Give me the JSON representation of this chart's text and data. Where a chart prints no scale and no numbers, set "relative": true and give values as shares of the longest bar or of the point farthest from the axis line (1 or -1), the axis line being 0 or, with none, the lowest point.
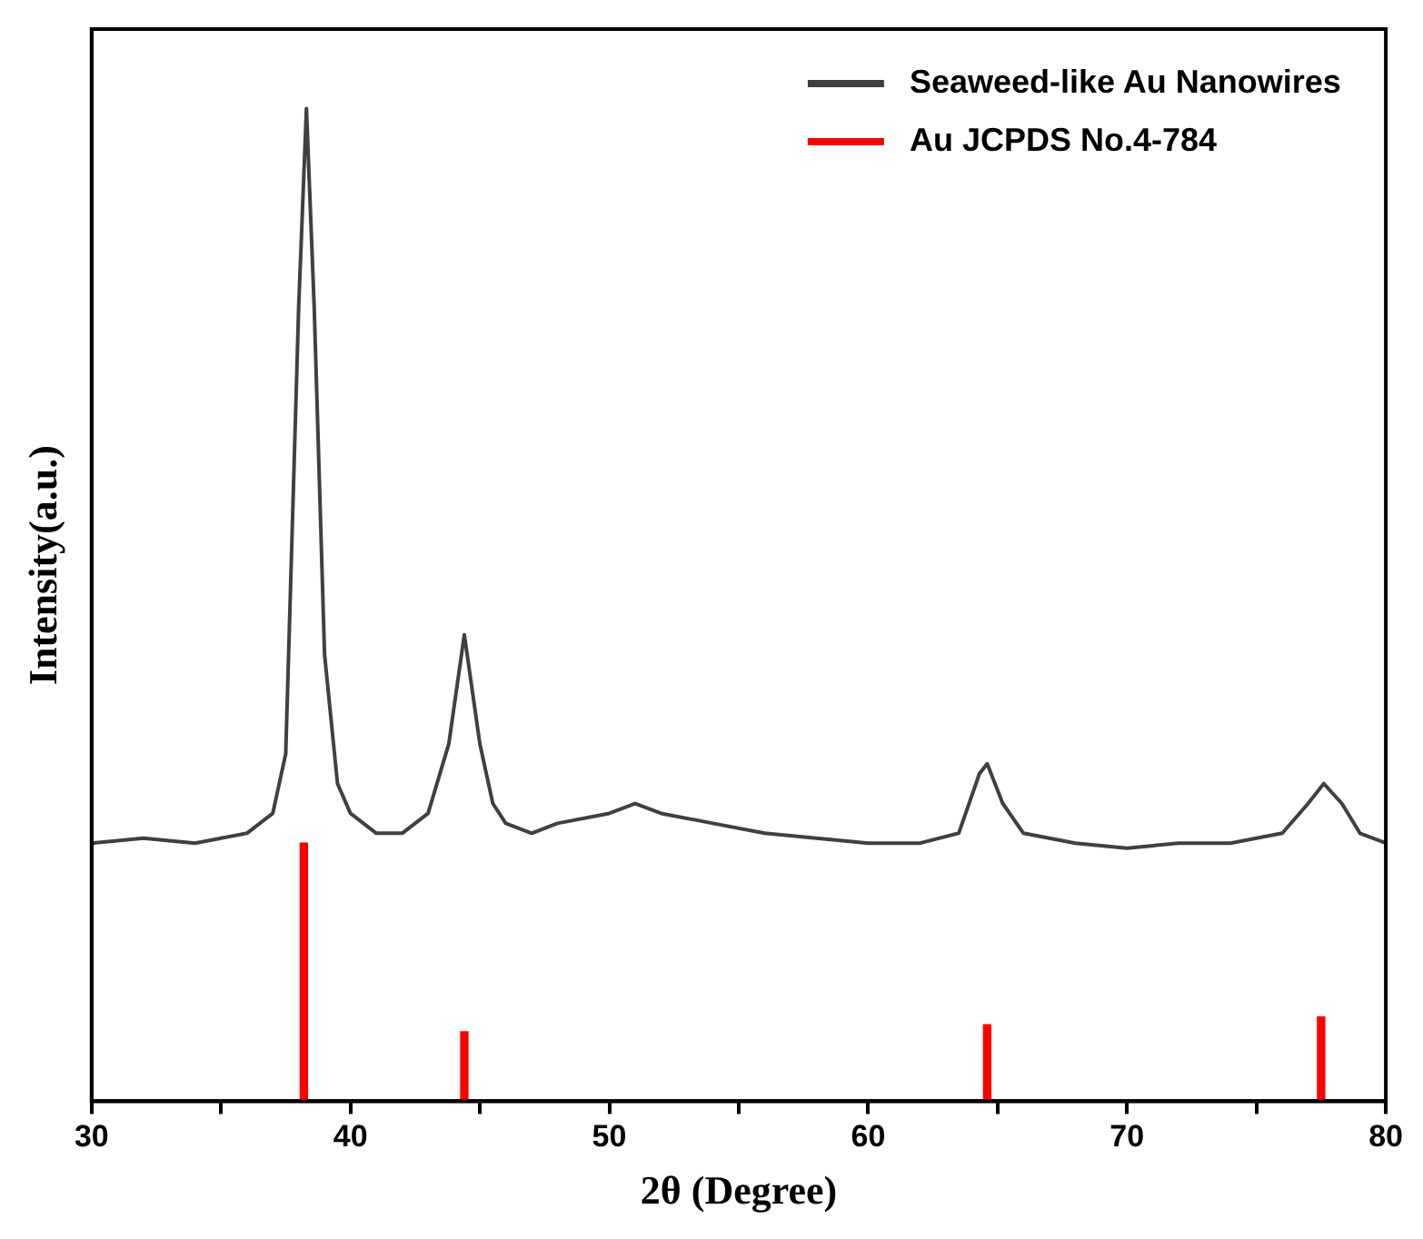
{
  "chart_data": {
    "type": "line",
    "xlabel": "2θ (Degree)",
    "ylabel": "Intensity(a.u.)",
    "relative": true,
    "xlim": [
      30,
      80
    ],
    "xticks": [
      30,
      {
        "value": 35,
        "label": null
      },
      40,
      {
        "value": 45,
        "label": null
      },
      50,
      {
        "value": 55,
        "label": null
      },
      60,
      {
        "value": 65,
        "label": null
      },
      70,
      {
        "value": 75,
        "label": null
      },
      80
    ],
    "legend": "top right",
    "grid": false,
    "series": [
      {
        "name": "Seaweed-like Au Nanowires",
        "color": "#404040",
        "x": [
          30,
          32,
          34,
          35,
          36,
          37,
          37.5,
          38.0,
          38.3,
          38.6,
          39,
          39.5,
          40,
          41,
          42,
          43,
          43.8,
          44.4,
          45,
          45.5,
          46,
          47,
          48,
          50,
          51,
          52,
          54,
          56,
          58,
          60,
          62,
          63.5,
          64.3,
          64.6,
          65.2,
          66,
          68,
          70,
          72,
          74,
          76,
          77,
          77.6,
          78.3,
          79,
          80
        ],
        "values": [
          0.26,
          0.265,
          0.26,
          0.265,
          0.27,
          0.29,
          0.35,
          0.8,
          1.0,
          0.8,
          0.45,
          0.32,
          0.29,
          0.27,
          0.27,
          0.29,
          0.36,
          0.47,
          0.36,
          0.3,
          0.28,
          0.27,
          0.28,
          0.29,
          0.3,
          0.29,
          0.28,
          0.27,
          0.265,
          0.26,
          0.26,
          0.27,
          0.33,
          0.34,
          0.3,
          0.27,
          0.26,
          0.255,
          0.26,
          0.26,
          0.27,
          0.3,
          0.32,
          0.3,
          0.27,
          0.26
        ]
      },
      {
        "name": "Au JCPDS No.4-784",
        "type": "bar",
        "color": "#ff0000",
        "x": [
          38.2,
          44.4,
          64.6,
          77.5
        ],
        "values": [
          0.26,
          0.07,
          0.077,
          0.085
        ]
      }
    ]
  }
}
